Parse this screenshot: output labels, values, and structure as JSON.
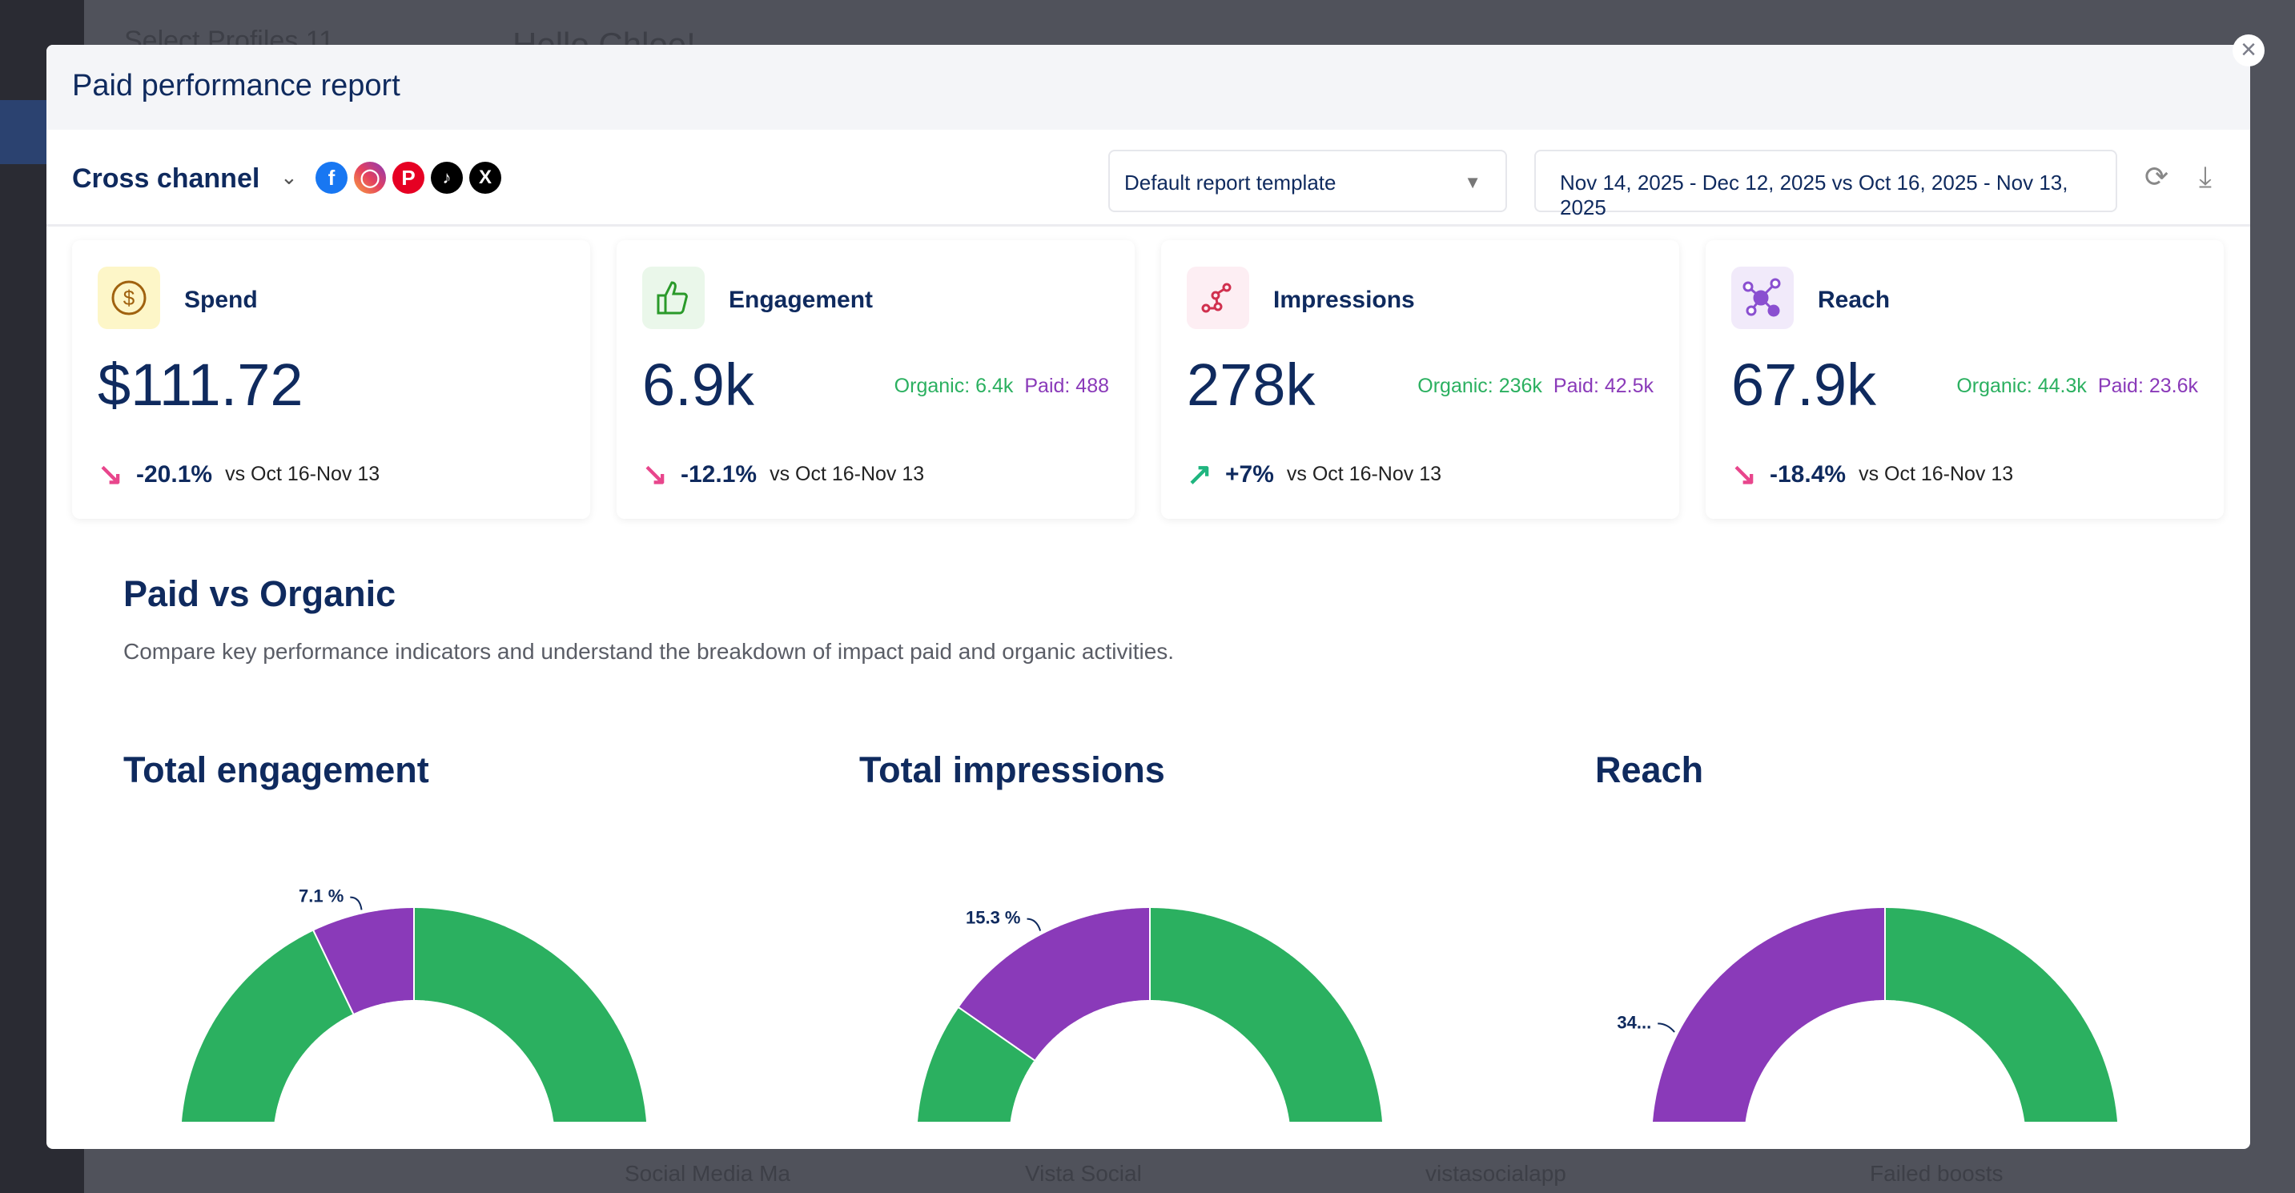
{
  "background": {
    "profiles": "Select Profiles  11",
    "greeting": "Hello Chloe!",
    "bottom": [
      "Social Media Ma",
      "Vista Social",
      "vistasocialapp",
      "Failed boosts"
    ]
  },
  "modal": {
    "title": "Paid performance report",
    "close_icon": "close-icon"
  },
  "toolbar": {
    "channel": "Cross channel",
    "networks": [
      "facebook",
      "instagram",
      "pinterest",
      "tiktok",
      "x"
    ],
    "template": "Default report template",
    "date_range": "Nov 14, 2025 - Dec 12, 2025 vs Oct 16, 2025 - Nov 13, 2025",
    "refresh_icon": "refresh-icon",
    "download_icon": "download-icon"
  },
  "cards": [
    {
      "label": "Spend",
      "value": "$111.72",
      "organic": "",
      "paid": "",
      "change": "-20.1%",
      "direction": "down",
      "vs": "vs Oct 16-Nov 13",
      "icon": "dollar-icon"
    },
    {
      "label": "Engagement",
      "value": "6.9k",
      "organic": "Organic: 6.4k",
      "paid": "Paid: 488",
      "change": "-12.1%",
      "direction": "down",
      "vs": "vs Oct 16-Nov 13",
      "icon": "thumbs-up-icon"
    },
    {
      "label": "Impressions",
      "value": "278k",
      "organic": "Organic: 236k",
      "paid": "Paid: 42.5k",
      "change": "+7%",
      "direction": "up",
      "vs": "vs Oct 16-Nov 13",
      "icon": "impressions-icon"
    },
    {
      "label": "Reach",
      "value": "67.9k",
      "organic": "Organic: 44.3k",
      "paid": "Paid: 23.6k",
      "change": "-18.4%",
      "direction": "down",
      "vs": "vs Oct 16-Nov 13",
      "icon": "reach-icon"
    }
  ],
  "section": {
    "title": "Paid vs Organic",
    "description": "Compare key performance indicators and understand the breakdown of impact paid and organic activities."
  },
  "colors": {
    "organic": "#2bb060",
    "paid": "#8a3ab9",
    "up": "#1fb57f",
    "down": "#e8468c"
  },
  "chart_data": [
    {
      "type": "pie",
      "title": "Total engagement",
      "slices": [
        {
          "label": "Paid",
          "value": 7.1,
          "label_text": "7.1 %"
        },
        {
          "label": "Organic",
          "value": 92.9
        }
      ]
    },
    {
      "type": "pie",
      "title": "Total impressions",
      "slices": [
        {
          "label": "Paid",
          "value": 15.3,
          "label_text": "15.3 %"
        },
        {
          "label": "Organic",
          "value": 84.7
        }
      ]
    },
    {
      "type": "pie",
      "title": "Reach",
      "slices": [
        {
          "label": "Paid",
          "value": 34.8,
          "label_text": "34..."
        },
        {
          "label": "Organic",
          "value": 65.2
        }
      ]
    }
  ]
}
